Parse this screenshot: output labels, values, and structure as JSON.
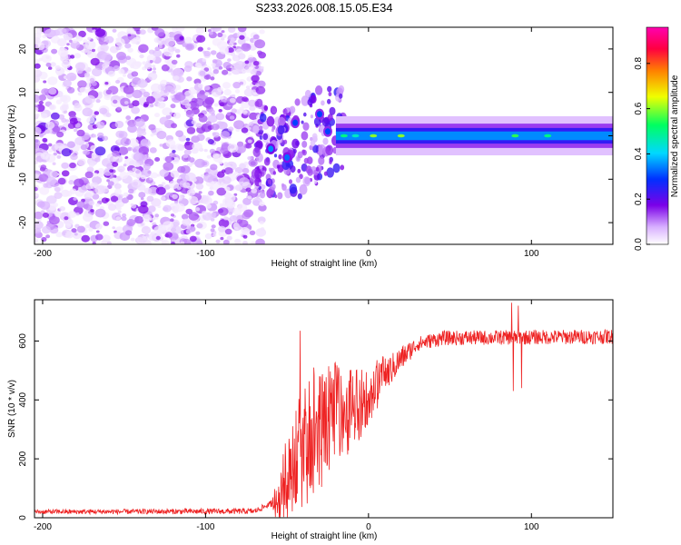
{
  "title": "S233.2026.008.15.05.E34",
  "chart_data": [
    {
      "type": "heatmap",
      "name": "spectrogram",
      "xlabel": "Height of straight line (km)",
      "ylabel": "Frequency (Hz)",
      "xlim": [
        -205,
        150
      ],
      "ylim": [
        -25,
        25
      ],
      "xticks": [
        -200,
        -100,
        0,
        100
      ],
      "yticks": [
        -20,
        -10,
        0,
        10,
        20
      ],
      "colorbar": {
        "label": "Normalized spectral amplitude",
        "range": [
          0,
          0.96
        ],
        "ticks": [
          0.0,
          0.2,
          0.4,
          0.6,
          0.8
        ],
        "tick_labels": [
          "0.0",
          "0.2",
          "0.4",
          "0.6",
          "0.8"
        ],
        "colormap": [
          "#ffffff",
          "#7b00e8",
          "#0030ff",
          "#00d8ff",
          "#00ff60",
          "#f0ff00",
          "#ff8000",
          "#ff0040",
          "#ff00b0"
        ]
      },
      "noise_region_x": [
        -205,
        -65
      ],
      "signal_band": {
        "x_start": -20,
        "x_end": 150,
        "center_hz": 0,
        "amplitude": 0.35
      },
      "transition_blobs": [
        {
          "x": -60,
          "f": -3,
          "amp": 0.35
        },
        {
          "x": -50,
          "f": -5,
          "amp": 0.33
        },
        {
          "x": -45,
          "f": 3,
          "amp": 0.3
        },
        {
          "x": -30,
          "f": 5,
          "amp": 0.3
        },
        {
          "x": -25,
          "f": 1,
          "amp": 0.3
        },
        {
          "x": -15,
          "f": 0,
          "amp": 0.5
        },
        {
          "x": -8,
          "f": 0,
          "amp": 0.45
        },
        {
          "x": 3,
          "f": 2,
          "amp": 0.6
        }
      ]
    },
    {
      "type": "line",
      "name": "snr",
      "xlabel": "Height of straight line (km)",
      "ylabel": "SNR (10 * v/v)",
      "xlim": [
        -205,
        150
      ],
      "ylim": [
        0,
        740
      ],
      "xticks": [
        -200,
        -100,
        0,
        100
      ],
      "yticks": [
        0,
        200,
        400,
        600
      ],
      "color": "#ee2222",
      "profile": [
        {
          "x": -205,
          "y": 20
        },
        {
          "x": -70,
          "y": 22
        },
        {
          "x": -55,
          "y": 60
        },
        {
          "x": -45,
          "y": 200
        },
        {
          "x": -35,
          "y": 280
        },
        {
          "x": -25,
          "y": 330
        },
        {
          "x": -10,
          "y": 380
        },
        {
          "x": 0,
          "y": 420
        },
        {
          "x": 10,
          "y": 480
        },
        {
          "x": 20,
          "y": 540
        },
        {
          "x": 30,
          "y": 590
        },
        {
          "x": 45,
          "y": 610
        },
        {
          "x": 150,
          "y": 615
        }
      ],
      "noise_amplitude": [
        {
          "x": -205,
          "a": 8
        },
        {
          "x": -60,
          "a": 10
        },
        {
          "x": -50,
          "a": 130
        },
        {
          "x": -35,
          "a": 190
        },
        {
          "x": -20,
          "a": 150
        },
        {
          "x": -5,
          "a": 110
        },
        {
          "x": 10,
          "a": 60
        },
        {
          "x": 30,
          "a": 25
        },
        {
          "x": 150,
          "a": 25
        }
      ],
      "spikes": [
        {
          "x": -42,
          "y": 635
        },
        {
          "x": -30,
          "y": 480
        },
        {
          "x": -18,
          "y": 500
        },
        {
          "x": 88,
          "y": 730
        },
        {
          "x": 89,
          "y": 430
        },
        {
          "x": 92,
          "y": 720
        },
        {
          "x": 94,
          "y": 440
        }
      ]
    }
  ]
}
